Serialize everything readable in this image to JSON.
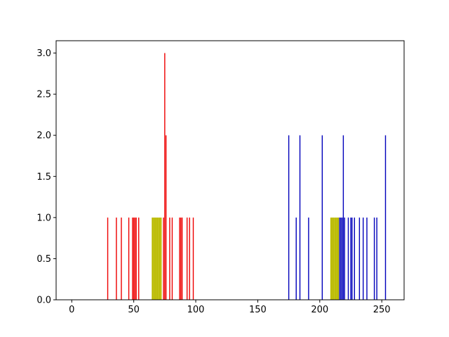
{
  "chart_data": {
    "type": "bar",
    "title": "",
    "xlabel": "",
    "ylabel": "",
    "xlim": [
      -12.6,
      268
    ],
    "ylim": [
      0,
      3.15
    ],
    "xticks": [
      0,
      50,
      100,
      150,
      200,
      250
    ],
    "yticks": [
      0.0,
      0.5,
      1.0,
      1.5,
      2.0,
      2.5,
      3.0
    ],
    "xtick_labels": [
      "0",
      "50",
      "100",
      "150",
      "200",
      "250"
    ],
    "ytick_labels": [
      "0.0",
      "0.5",
      "1.0",
      "1.5",
      "2.0",
      "2.5",
      "3.0"
    ],
    "grid": false,
    "legend": null,
    "series": [
      {
        "color": "#ee0000",
        "bar_width": 0.8,
        "x": [
          29,
          36,
          40,
          46,
          49,
          50,
          51,
          52,
          54,
          74,
          75,
          76,
          79,
          81,
          87,
          88,
          89,
          93,
          95,
          98
        ],
        "values": [
          1,
          1,
          1,
          1,
          1,
          1,
          1,
          1,
          1,
          1,
          3,
          2,
          1,
          1,
          1,
          1,
          1,
          1,
          1,
          1
        ]
      },
      {
        "color": "#bbbb00",
        "bar_width": 1.0,
        "x": [
          65,
          66,
          67,
          68,
          69,
          70,
          71,
          72,
          209,
          210,
          211,
          212,
          213,
          214,
          215
        ],
        "values": [
          1,
          1,
          1,
          1,
          1,
          1,
          1,
          1,
          1,
          1,
          1,
          1,
          1,
          1,
          1
        ]
      },
      {
        "color": "#0000bb",
        "bar_width": 0.8,
        "x": [
          175,
          181,
          184,
          191,
          202,
          216,
          217,
          218,
          219,
          220,
          223,
          225,
          226,
          228,
          232,
          235,
          238,
          244,
          246,
          253
        ],
        "values": [
          2,
          1,
          2,
          1,
          2,
          1,
          1,
          1,
          2,
          1,
          1,
          1,
          1,
          1,
          1,
          1,
          1,
          1,
          1,
          2
        ]
      }
    ]
  }
}
